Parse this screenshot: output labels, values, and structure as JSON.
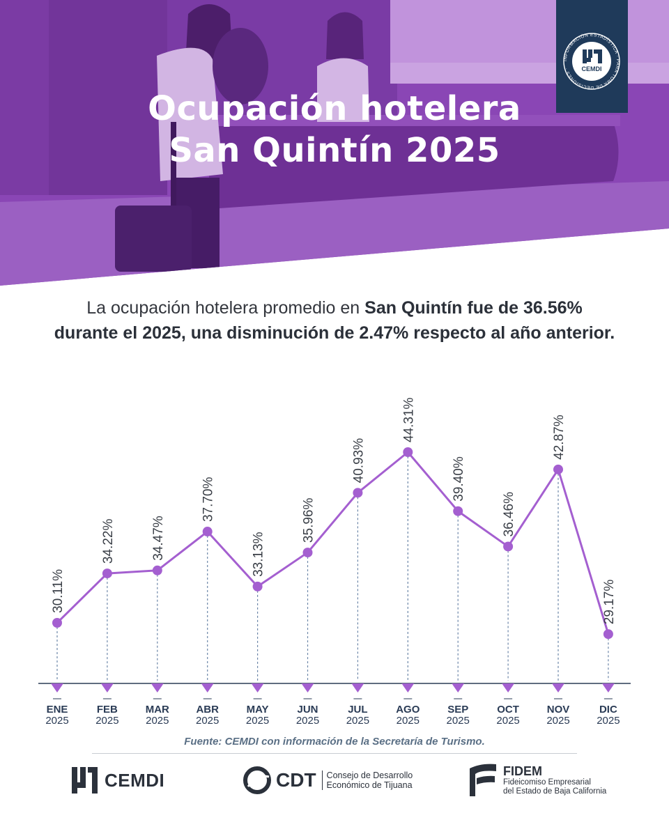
{
  "header": {
    "title_line1": "Ocupación hotelera",
    "title_line2": "San Quintín 2025",
    "badge": {
      "ring_text": "INFORMACIÓN ESTADÍSTICA · PARA TOMA DE DECISIONES ·",
      "name": "CEMDI"
    }
  },
  "summary": {
    "part1": "La ocupación hotelera promedio en ",
    "bold1": "San Quintín fue de 36.56%",
    "bold2": "durante el 2025, una disminución de 2.47% respecto al año anterior."
  },
  "chart_data": {
    "type": "line",
    "categories": [
      "ENE",
      "FEB",
      "MAR",
      "ABR",
      "MAY",
      "JUN",
      "JUL",
      "AGO",
      "SEP",
      "OCT",
      "NOV",
      "DIC"
    ],
    "category_year": "2025",
    "values": [
      30.11,
      34.22,
      34.47,
      37.7,
      33.13,
      35.96,
      40.93,
      44.31,
      39.4,
      36.46,
      42.87,
      29.17
    ],
    "value_labels": [
      "30.11%",
      "34.22%",
      "34.47%",
      "37.70%",
      "33.13%",
      "35.96%",
      "40.93%",
      "44.31%",
      "39.40%",
      "36.46%",
      "42.87%",
      "29.17%"
    ],
    "line_color": "#a45fd0",
    "axis_color": "#2a3b55",
    "grid": false
  },
  "footer": {
    "source": "Fuente: CEMDI con información de la Secretaría de Turismo.",
    "logos": {
      "cemdi": "CEMDI",
      "cdt": "CDT",
      "cdt_sub1": "Consejo de Desarrollo",
      "cdt_sub2": "Económico de Tijuana",
      "fidem": "FIDEM",
      "fidem_sub1": "Fideicomiso Empresarial",
      "fidem_sub2": "del Estado de Baja California"
    }
  },
  "colors": {
    "purple_overlay": "#9b58c4",
    "purple_light": "#cfa6e8",
    "navy": "#1f3a5a"
  }
}
